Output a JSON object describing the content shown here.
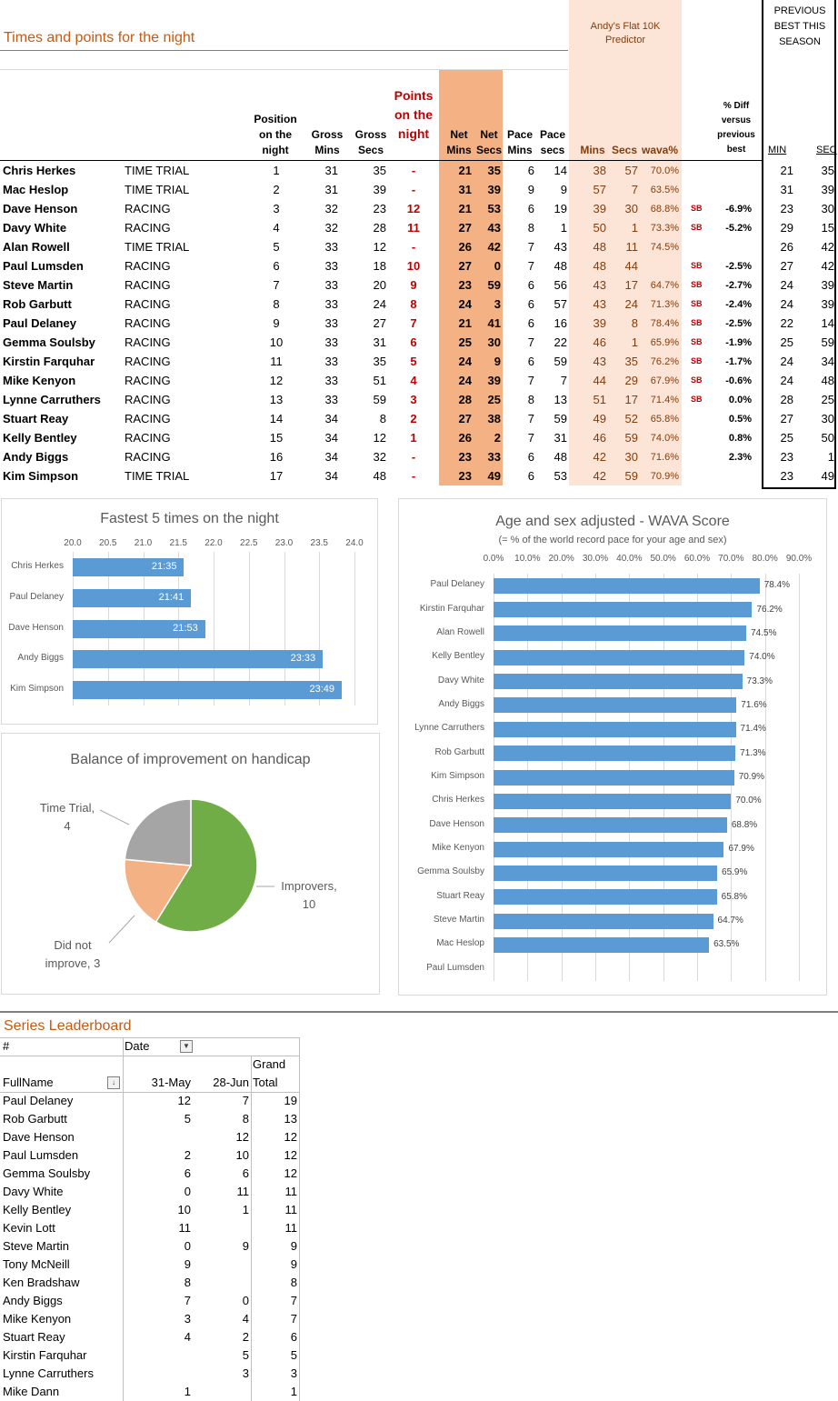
{
  "header": {
    "title": "Times and points for the night",
    "predictor_title_1": "Andy's Flat 10K",
    "predictor_title_2": "Predictor",
    "prev_best_1": "PREVIOUS",
    "prev_best_2": "BEST THIS",
    "prev_best_3": "SEASON"
  },
  "columns": {
    "position": [
      "Position",
      "on the",
      "night"
    ],
    "gross_mins": [
      "Gross",
      "Mins"
    ],
    "gross_secs": [
      "Gross",
      "Secs"
    ],
    "points": [
      "Points",
      "on the",
      "night"
    ],
    "net_mins": [
      "Net",
      "Mins"
    ],
    "net_secs": [
      "Net",
      "Secs"
    ],
    "pace_mins": [
      "Pace",
      "Mins"
    ],
    "pace_secs": [
      "Pace",
      "secs"
    ],
    "pred_mins": "Mins",
    "pred_secs": "Secs",
    "wava": "wava%",
    "diff": [
      "% Diff",
      "versus",
      "previous",
      "best"
    ],
    "min": "MIN",
    "sec": "SEC"
  },
  "results": [
    {
      "name": "Chris Herkes",
      "type": "TIME TRIAL",
      "pos": "1",
      "gm": "31",
      "gs": "35",
      "pts": "-",
      "nm": "21",
      "ns": "35",
      "pm": "6",
      "ps": "14",
      "pmin": "38",
      "psec": "57",
      "wava": "70.0%",
      "sb": "",
      "diff": "",
      "min": "21",
      "sec": "35"
    },
    {
      "name": "Mac Heslop",
      "type": "TIME TRIAL",
      "pos": "2",
      "gm": "31",
      "gs": "39",
      "pts": "-",
      "nm": "31",
      "ns": "39",
      "pm": "9",
      "ps": "9",
      "pmin": "57",
      "psec": "7",
      "wava": "63.5%",
      "sb": "",
      "diff": "",
      "min": "31",
      "sec": "39"
    },
    {
      "name": "Dave Henson",
      "type": "RACING",
      "pos": "3",
      "gm": "32",
      "gs": "23",
      "pts": "12",
      "nm": "21",
      "ns": "53",
      "pm": "6",
      "ps": "19",
      "pmin": "39",
      "psec": "30",
      "wava": "68.8%",
      "sb": "SB",
      "diff": "-6.9%",
      "min": "23",
      "sec": "30"
    },
    {
      "name": "Davy White",
      "type": "RACING",
      "pos": "4",
      "gm": "32",
      "gs": "28",
      "pts": "11",
      "nm": "27",
      "ns": "43",
      "pm": "8",
      "ps": "1",
      "pmin": "50",
      "psec": "1",
      "wava": "73.3%",
      "sb": "SB",
      "diff": "-5.2%",
      "min": "29",
      "sec": "15"
    },
    {
      "name": "Alan Rowell",
      "type": "TIME TRIAL",
      "pos": "5",
      "gm": "33",
      "gs": "12",
      "pts": "-",
      "nm": "26",
      "ns": "42",
      "pm": "7",
      "ps": "43",
      "pmin": "48",
      "psec": "11",
      "wava": "74.5%",
      "sb": "",
      "diff": "",
      "min": "26",
      "sec": "42"
    },
    {
      "name": "Paul Lumsden",
      "type": "RACING",
      "pos": "6",
      "gm": "33",
      "gs": "18",
      "pts": "10",
      "nm": "27",
      "ns": "0",
      "pm": "7",
      "ps": "48",
      "pmin": "48",
      "psec": "44",
      "wava": "",
      "sb": "SB",
      "diff": "-2.5%",
      "min": "27",
      "sec": "42"
    },
    {
      "name": "Steve Martin",
      "type": "RACING",
      "pos": "7",
      "gm": "33",
      "gs": "20",
      "pts": "9",
      "nm": "23",
      "ns": "59",
      "pm": "6",
      "ps": "56",
      "pmin": "43",
      "psec": "17",
      "wava": "64.7%",
      "sb": "SB",
      "diff": "-2.7%",
      "min": "24",
      "sec": "39"
    },
    {
      "name": "Rob Garbutt",
      "type": "RACING",
      "pos": "8",
      "gm": "33",
      "gs": "24",
      "pts": "8",
      "nm": "24",
      "ns": "3",
      "pm": "6",
      "ps": "57",
      "pmin": "43",
      "psec": "24",
      "wava": "71.3%",
      "sb": "SB",
      "diff": "-2.4%",
      "min": "24",
      "sec": "39"
    },
    {
      "name": "Paul Delaney",
      "type": "RACING",
      "pos": "9",
      "gm": "33",
      "gs": "27",
      "pts": "7",
      "nm": "21",
      "ns": "41",
      "pm": "6",
      "ps": "16",
      "pmin": "39",
      "psec": "8",
      "wava": "78.4%",
      "sb": "SB",
      "diff": "-2.5%",
      "min": "22",
      "sec": "14"
    },
    {
      "name": "Gemma Soulsby",
      "type": "RACING",
      "pos": "10",
      "gm": "33",
      "gs": "31",
      "pts": "6",
      "nm": "25",
      "ns": "30",
      "pm": "7",
      "ps": "22",
      "pmin": "46",
      "psec": "1",
      "wava": "65.9%",
      "sb": "SB",
      "diff": "-1.9%",
      "min": "25",
      "sec": "59"
    },
    {
      "name": "Kirstin Farquhar",
      "type": "RACING",
      "pos": "11",
      "gm": "33",
      "gs": "35",
      "pts": "5",
      "nm": "24",
      "ns": "9",
      "pm": "6",
      "ps": "59",
      "pmin": "43",
      "psec": "35",
      "wava": "76.2%",
      "sb": "SB",
      "diff": "-1.7%",
      "min": "24",
      "sec": "34"
    },
    {
      "name": "Mike Kenyon",
      "type": "RACING",
      "pos": "12",
      "gm": "33",
      "gs": "51",
      "pts": "4",
      "nm": "24",
      "ns": "39",
      "pm": "7",
      "ps": "7",
      "pmin": "44",
      "psec": "29",
      "wava": "67.9%",
      "sb": "SB",
      "diff": "-0.6%",
      "min": "24",
      "sec": "48"
    },
    {
      "name": "Lynne Carruthers",
      "type": "RACING",
      "pos": "13",
      "gm": "33",
      "gs": "59",
      "pts": "3",
      "nm": "28",
      "ns": "25",
      "pm": "8",
      "ps": "13",
      "pmin": "51",
      "psec": "17",
      "wava": "71.4%",
      "sb": "SB",
      "diff": "0.0%",
      "min": "28",
      "sec": "25"
    },
    {
      "name": "Stuart Reay",
      "type": "RACING",
      "pos": "14",
      "gm": "34",
      "gs": "8",
      "pts": "2",
      "nm": "27",
      "ns": "38",
      "pm": "7",
      "ps": "59",
      "pmin": "49",
      "psec": "52",
      "wava": "65.8%",
      "sb": "",
      "diff": "0.5%",
      "min": "27",
      "sec": "30"
    },
    {
      "name": "Kelly Bentley",
      "type": "RACING",
      "pos": "15",
      "gm": "34",
      "gs": "12",
      "pts": "1",
      "nm": "26",
      "ns": "2",
      "pm": "7",
      "ps": "31",
      "pmin": "46",
      "psec": "59",
      "wava": "74.0%",
      "sb": "",
      "diff": "0.8%",
      "min": "25",
      "sec": "50"
    },
    {
      "name": "Andy Biggs",
      "type": "RACING",
      "pos": "16",
      "gm": "34",
      "gs": "32",
      "pts": "-",
      "nm": "23",
      "ns": "33",
      "pm": "6",
      "ps": "48",
      "pmin": "42",
      "psec": "30",
      "wava": "71.6%",
      "sb": "",
      "diff": "2.3%",
      "min": "23",
      "sec": "1"
    },
    {
      "name": "Kim Simpson",
      "type": "TIME TRIAL",
      "pos": "17",
      "gm": "34",
      "gs": "48",
      "pts": "-",
      "nm": "23",
      "ns": "49",
      "pm": "6",
      "ps": "53",
      "pmin": "42",
      "psec": "59",
      "wava": "70.9%",
      "sb": "",
      "diff": "",
      "min": "23",
      "sec": "49"
    }
  ],
  "chart_data": [
    {
      "type": "bar",
      "title": "Fastest 5 times on the night",
      "categories": [
        "Chris Herkes",
        "Paul Delaney",
        "Dave Henson",
        "Andy Biggs",
        "Kim Simpson"
      ],
      "values": [
        21.58,
        21.68,
        21.88,
        23.55,
        23.82
      ],
      "data_labels": [
        "21:35",
        "21:41",
        "21:53",
        "23:33",
        "23:49"
      ],
      "xlim": [
        20.0,
        24.0
      ],
      "ticks": [
        "20.0",
        "20.5",
        "21.0",
        "21.5",
        "22.0",
        "22.5",
        "23.0",
        "23.5",
        "24.0"
      ],
      "grid": true
    },
    {
      "type": "pie",
      "title": "Balance of improvement on handicap",
      "labels": [
        "Improvers",
        "Did not improve",
        "Time Trial"
      ],
      "label_lines": [
        [
          "Improvers,",
          "10"
        ],
        [
          "Did not",
          "improve, 3"
        ],
        [
          "Time Trial,",
          "4"
        ]
      ],
      "values": [
        10,
        3,
        4
      ],
      "colors": [
        "#70ad47",
        "#f4b183",
        "#a5a5a5"
      ]
    },
    {
      "type": "bar",
      "title": "Age and sex adjusted - WAVA Score",
      "subtitle": "(= % of the world record pace for your age and sex)",
      "categories": [
        "Paul Delaney",
        "Kirstin Farquhar",
        "Alan Rowell",
        "Kelly Bentley",
        "Davy White",
        "Andy Biggs",
        "Lynne Carruthers",
        "Rob Garbutt",
        "Kim Simpson",
        "Chris Herkes",
        "Dave Henson",
        "Mike Kenyon",
        "Gemma Soulsby",
        "Stuart Reay",
        "Steve Martin",
        "Mac Heslop",
        "Paul Lumsden"
      ],
      "values": [
        78.4,
        76.2,
        74.5,
        74.0,
        73.3,
        71.6,
        71.4,
        71.3,
        70.9,
        70.0,
        68.8,
        67.9,
        65.9,
        65.8,
        64.7,
        63.5,
        null
      ],
      "data_labels": [
        "78.4%",
        "76.2%",
        "74.5%",
        "74.0%",
        "73.3%",
        "71.6%",
        "71.4%",
        "71.3%",
        "70.9%",
        "70.0%",
        "68.8%",
        "67.9%",
        "65.9%",
        "65.8%",
        "64.7%",
        "63.5%",
        ""
      ],
      "xlim": [
        0,
        90
      ],
      "ticks": [
        "0.0%",
        "10.0%",
        "20.0%",
        "30.0%",
        "40.0%",
        "50.0%",
        "60.0%",
        "70.0%",
        "80.0%",
        "90.0%"
      ],
      "grid": true
    }
  ],
  "leaderboard": {
    "title": "Series Leaderboard",
    "hash": "#",
    "date_label": "Date",
    "fullname_label": "FullName",
    "col1": "31-May",
    "col2": "28-Jun",
    "grand1": "Grand",
    "grand2": "Total",
    "rows": [
      {
        "name": "Paul Delaney",
        "a": "12",
        "b": "7",
        "t": "19"
      },
      {
        "name": "Rob Garbutt",
        "a": "5",
        "b": "8",
        "t": "13"
      },
      {
        "name": "Dave Henson",
        "a": "",
        "b": "12",
        "t": "12"
      },
      {
        "name": "Paul Lumsden",
        "a": "2",
        "b": "10",
        "t": "12"
      },
      {
        "name": "Gemma Soulsby",
        "a": "6",
        "b": "6",
        "t": "12"
      },
      {
        "name": "Davy White",
        "a": "0",
        "b": "11",
        "t": "11"
      },
      {
        "name": "Kelly Bentley",
        "a": "10",
        "b": "1",
        "t": "11"
      },
      {
        "name": "Kevin Lott",
        "a": "11",
        "b": "",
        "t": "11"
      },
      {
        "name": "Steve Martin",
        "a": "0",
        "b": "9",
        "t": "9"
      },
      {
        "name": "Tony McNeill",
        "a": "9",
        "b": "",
        "t": "9"
      },
      {
        "name": "Ken Bradshaw",
        "a": "8",
        "b": "",
        "t": "8"
      },
      {
        "name": "Andy Biggs",
        "a": "7",
        "b": "0",
        "t": "7"
      },
      {
        "name": "Mike Kenyon",
        "a": "3",
        "b": "4",
        "t": "7"
      },
      {
        "name": "Stuart Reay",
        "a": "4",
        "b": "2",
        "t": "6"
      },
      {
        "name": "Kirstin Farquhar",
        "a": "",
        "b": "5",
        "t": "5"
      },
      {
        "name": "Lynne Carruthers",
        "a": "",
        "b": "3",
        "t": "3"
      },
      {
        "name": "Mike Dann",
        "a": "1",
        "b": "",
        "t": "1"
      }
    ]
  }
}
